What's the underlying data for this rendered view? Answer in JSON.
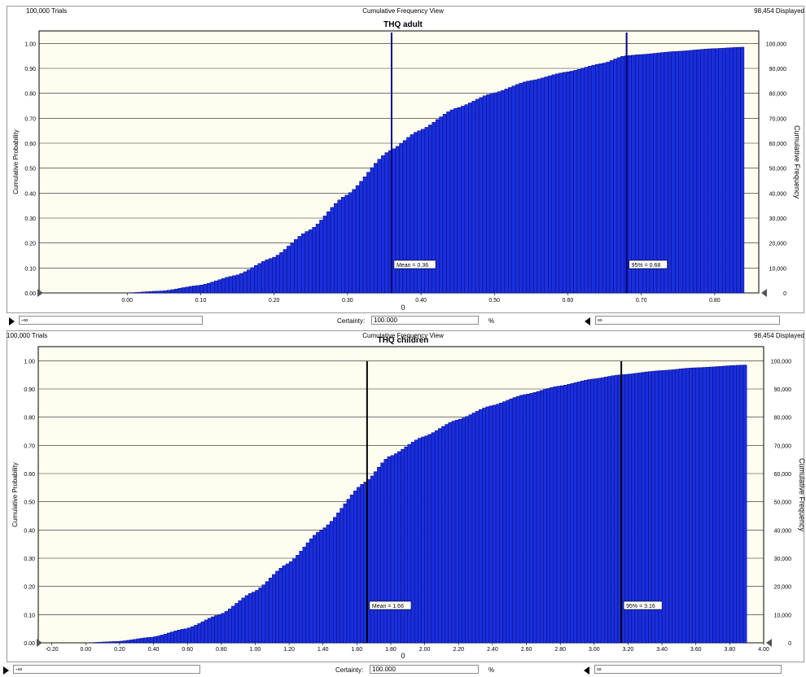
{
  "panels": [
    {
      "trials": "100,000 Trials",
      "view": "Cumulative Frequency View",
      "displayed": "98,454 Displayed",
      "certainty_label": "Certainty:",
      "certainty_value": "100.000",
      "percent": "%",
      "left_value": "-∞",
      "right_value": "∞"
    },
    {
      "trials": "100,000 Trials",
      "view": "Cumulative Frequency View",
      "displayed": "98,454 Displayed",
      "certainty_label": "Certainty:",
      "certainty_value": "100.000",
      "percent": "%",
      "left_value": "-∞",
      "right_value": "∞"
    }
  ],
  "colors": {
    "bar": "#1a2fdc",
    "plot_bg": "#fefef0",
    "marker": "#00007a",
    "marker2": "#000000"
  },
  "chart_data": [
    {
      "type": "bar",
      "title": "THQ adult",
      "xlabel": "0",
      "ylabel": "Cumulative Probability",
      "y2label": "Cumulative Frequency",
      "xlim": [
        -0.12,
        0.86
      ],
      "ylim": [
        0,
        1.05
      ],
      "x_ticks": [
        "0.00",
        "0.10",
        "0.20",
        "0.30",
        "0.40",
        "0.50",
        "0.60",
        "0.70",
        "0.80"
      ],
      "y_ticks": [
        "0.00",
        "0.10",
        "0.20",
        "0.30",
        "0.40",
        "0.50",
        "0.60",
        "0.70",
        "0.80",
        "0.90",
        "1.00"
      ],
      "y2_ticks": [
        "0",
        "10,000",
        "20,000",
        "30,000",
        "40,000",
        "50,000",
        "60,000",
        "70,000",
        "80,000",
        "90,000",
        "100,000"
      ],
      "bins_x0": 0.0,
      "bins_x1": 0.84,
      "bin_count": 170,
      "cdf_points": [
        [
          0.0,
          0.0
        ],
        [
          0.05,
          0.008
        ],
        [
          0.1,
          0.03
        ],
        [
          0.15,
          0.07
        ],
        [
          0.2,
          0.14
        ],
        [
          0.25,
          0.25
        ],
        [
          0.3,
          0.39
        ],
        [
          0.36,
          0.57
        ],
        [
          0.4,
          0.65
        ],
        [
          0.45,
          0.74
        ],
        [
          0.5,
          0.8
        ],
        [
          0.55,
          0.85
        ],
        [
          0.6,
          0.885
        ],
        [
          0.65,
          0.92
        ],
        [
          0.68,
          0.95
        ],
        [
          0.7,
          0.955
        ],
        [
          0.75,
          0.968
        ],
        [
          0.8,
          0.979
        ],
        [
          0.84,
          0.985
        ]
      ],
      "markers": [
        {
          "x": 0.36,
          "label": "Mean = 0.36"
        },
        {
          "x": 0.68,
          "label": "95% = 0.68"
        }
      ]
    },
    {
      "type": "bar",
      "title": "THQ children",
      "xlabel": "0",
      "ylabel": "Cumulative Probability",
      "y2label": "Cumulative Frequency",
      "xlim": [
        -0.28,
        4.0
      ],
      "ylim": [
        0,
        1.05
      ],
      "x_ticks": [
        "-0.20",
        "0.00",
        "0.20",
        "0.40",
        "0.60",
        "0.80",
        "1.00",
        "1.20",
        "1.40",
        "1.60",
        "1.80",
        "2.00",
        "2.20",
        "2.40",
        "2.60",
        "2.80",
        "3.00",
        "3.20",
        "3.40",
        "3.60",
        "3.80",
        "4.00"
      ],
      "y_ticks": [
        "0.00",
        "0.10",
        "0.20",
        "0.30",
        "0.40",
        "0.50",
        "0.60",
        "0.70",
        "0.80",
        "0.90",
        "1.00"
      ],
      "y2_ticks": [
        "0",
        "10,000",
        "20,000",
        "30,000",
        "40,000",
        "50,000",
        "60,000",
        "70,000",
        "80,000",
        "90,000",
        "100,000"
      ],
      "bins_x0": 0.0,
      "bins_x1": 3.9,
      "bin_count": 195,
      "cdf_points": [
        [
          0.0,
          0.0
        ],
        [
          0.2,
          0.005
        ],
        [
          0.4,
          0.02
        ],
        [
          0.6,
          0.05
        ],
        [
          0.8,
          0.1
        ],
        [
          1.0,
          0.18
        ],
        [
          1.2,
          0.28
        ],
        [
          1.4,
          0.4
        ],
        [
          1.66,
          0.57
        ],
        [
          1.8,
          0.66
        ],
        [
          2.0,
          0.73
        ],
        [
          2.2,
          0.79
        ],
        [
          2.4,
          0.84
        ],
        [
          2.6,
          0.88
        ],
        [
          2.8,
          0.91
        ],
        [
          3.0,
          0.935
        ],
        [
          3.16,
          0.95
        ],
        [
          3.4,
          0.965
        ],
        [
          3.6,
          0.975
        ],
        [
          3.9,
          0.985
        ]
      ],
      "markers": [
        {
          "x": 1.66,
          "label": "Mean = 1.66"
        },
        {
          "x": 3.16,
          "label": "95% = 3.16"
        }
      ]
    }
  ]
}
